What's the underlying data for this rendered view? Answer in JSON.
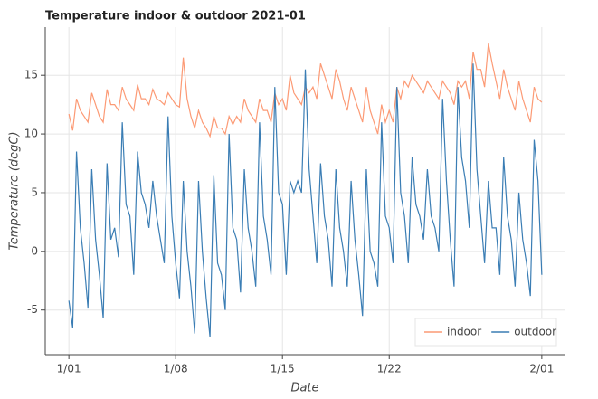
{
  "chart_data": {
    "type": "line",
    "title": "Temperature indoor & outdoor 2021-01",
    "x_label": "Date",
    "y_label": "Temperature (degC)",
    "x": [
      1,
      1.25,
      1.5,
      1.75,
      2,
      2.25,
      2.5,
      2.75,
      3,
      3.25,
      3.5,
      3.75,
      4,
      4.25,
      4.5,
      4.75,
      5,
      5.25,
      5.5,
      5.75,
      6,
      6.25,
      6.5,
      6.75,
      7,
      7.25,
      7.5,
      7.75,
      8,
      8.25,
      8.5,
      8.75,
      9,
      9.25,
      9.5,
      9.75,
      10,
      10.25,
      10.5,
      10.75,
      11,
      11.25,
      11.5,
      11.75,
      12,
      12.25,
      12.5,
      12.75,
      13,
      13.25,
      13.5,
      13.75,
      14,
      14.25,
      14.5,
      14.75,
      15,
      15.25,
      15.5,
      15.75,
      16,
      16.25,
      16.5,
      16.75,
      17,
      17.25,
      17.5,
      17.75,
      18,
      18.25,
      18.5,
      18.75,
      19,
      19.25,
      19.5,
      19.75,
      20,
      20.25,
      20.5,
      20.75,
      21,
      21.25,
      21.5,
      21.75,
      22,
      22.25,
      22.5,
      22.75,
      23,
      23.25,
      23.5,
      23.75,
      24,
      24.25,
      24.5,
      24.75,
      25,
      25.25,
      25.5,
      25.75,
      26,
      26.25,
      26.5,
      26.75,
      27,
      27.25,
      27.5,
      27.75,
      28,
      28.25,
      28.5,
      28.75,
      29,
      29.25,
      29.5,
      29.75,
      30,
      30.25,
      30.5,
      30.75,
      31,
      31.25,
      31.5,
      31.75,
      32
    ],
    "series": [
      {
        "name": "indoor",
        "color": "#fc9a75",
        "values": [
          11.7,
          10.3,
          13,
          12,
          11.5,
          11,
          13.5,
          12.5,
          11.5,
          11,
          13.8,
          12.5,
          12.5,
          12,
          14,
          13,
          12.5,
          12,
          14.2,
          13,
          13,
          12.5,
          13.8,
          13,
          12.8,
          12.5,
          13.5,
          13,
          12.5,
          12.3,
          16.5,
          13,
          11.5,
          10.5,
          12,
          11,
          10.5,
          9.8,
          11.5,
          10.5,
          10.5,
          10,
          11.5,
          10.8,
          11.5,
          11,
          13,
          12,
          11.5,
          11,
          13,
          12,
          12,
          11,
          13.5,
          12.5,
          13,
          12,
          15,
          13.5,
          13,
          12.5,
          14,
          13.5,
          14,
          13,
          16,
          15,
          14,
          13,
          15.5,
          14.5,
          13,
          12,
          14,
          13,
          12,
          11,
          14,
          12,
          11,
          10,
          12.5,
          11,
          12,
          11,
          14,
          13,
          14.5,
          14,
          15,
          14.5,
          14,
          13.5,
          14.5,
          14,
          13.5,
          13,
          14.5,
          14,
          13.5,
          12.5,
          14.5,
          14,
          14.5,
          13,
          17,
          15.5,
          15.5,
          14,
          17.7,
          16,
          14.5,
          13,
          15.5,
          14,
          13,
          12,
          14.5,
          13,
          12,
          11,
          14,
          13,
          12.7
        ]
      },
      {
        "name": "outdoor",
        "color": "#3a7db4",
        "values": [
          -4.2,
          -6.5,
          8.5,
          2,
          -1,
          -4.8,
          7,
          1,
          -2,
          -5.7,
          7.5,
          1,
          2,
          -0.5,
          11,
          4,
          3,
          -2,
          8.5,
          5,
          4,
          2,
          6,
          3,
          1,
          -1,
          11.5,
          3,
          -1,
          -4,
          6,
          0,
          -3,
          -7,
          6,
          0,
          -4,
          -7.3,
          6.5,
          -1,
          -2,
          -5,
          10,
          2,
          1,
          -3.5,
          7,
          2,
          0,
          -3,
          11,
          3,
          1,
          -2,
          14,
          5,
          4,
          -2,
          6,
          5,
          6,
          5,
          15.5,
          7,
          3,
          -1,
          7.5,
          3,
          1,
          -3,
          7,
          2,
          0,
          -3,
          6,
          1,
          -2,
          -5.5,
          7,
          0,
          -1,
          -3,
          11,
          3,
          2,
          -1,
          14,
          5,
          3,
          -1,
          8,
          4,
          3,
          1,
          7,
          3,
          2,
          0,
          13,
          6,
          1,
          -3,
          14,
          8,
          6,
          2,
          16,
          7,
          3,
          -1,
          6,
          2,
          2,
          -2,
          8,
          3,
          1,
          -3,
          5,
          1,
          -1,
          -3.8,
          9.5,
          6,
          -2
        ]
      }
    ],
    "xlim": [
      -0.55,
      33.55
    ],
    "ylim": [
      -8.8,
      19.1
    ],
    "xticks": [
      {
        "value": 1,
        "label": "1/01"
      },
      {
        "value": 8,
        "label": "1/08"
      },
      {
        "value": 15,
        "label": "1/15"
      },
      {
        "value": 22,
        "label": "1/22"
      },
      {
        "value": 32,
        "label": "2/01"
      }
    ],
    "yticks": [
      -5,
      0,
      5,
      10,
      15
    ],
    "grid": true,
    "legend_position": "bottom-right"
  }
}
